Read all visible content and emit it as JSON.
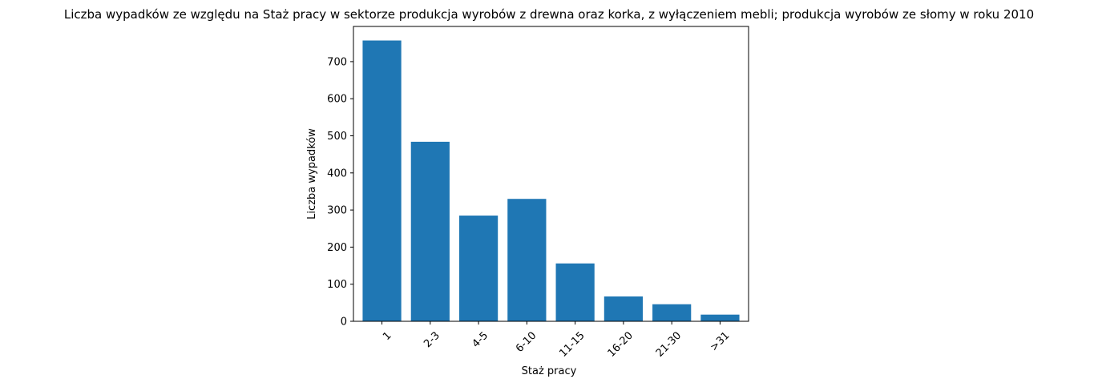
{
  "chart_data": {
    "type": "bar",
    "title": "Liczba wypadków ze względu na Staż pracy w sektorze produkcja wyrobów z drewna oraz korka, z wyłączeniem mebli; produkcja wyrobów ze słomy w roku 2010",
    "xlabel": "Staż pracy",
    "ylabel": "Liczba wypadków",
    "categories": [
      "1",
      "2-3",
      "4-5",
      "6-10",
      "11-15",
      "16-20",
      "21-30",
      ">31"
    ],
    "values": [
      757,
      484,
      285,
      330,
      156,
      67,
      46,
      18
    ],
    "ylim": [
      0,
      794.85
    ],
    "yticks": [
      0,
      100,
      200,
      300,
      400,
      500,
      600,
      700
    ],
    "grid": false,
    "bar_color": "#1f77b4"
  }
}
